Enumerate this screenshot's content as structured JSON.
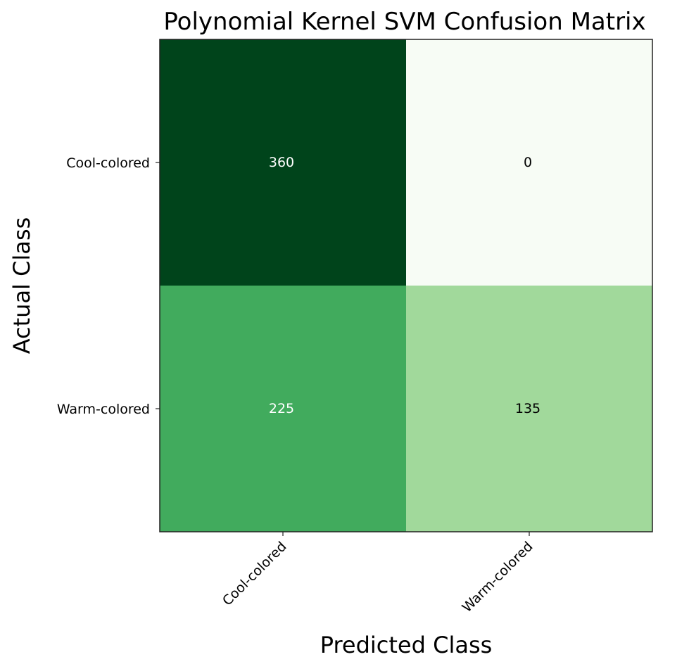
{
  "chart_data": {
    "type": "heatmap",
    "title": "Polynomial Kernel SVM Confusion Matrix",
    "xlabel": "Predicted Class",
    "ylabel": "Actual Class",
    "x_categories": [
      "Cool-colored",
      "Warm-colored"
    ],
    "y_categories": [
      "Cool-colored",
      "Warm-colored"
    ],
    "values": [
      [
        360,
        0
      ],
      [
        225,
        135
      ]
    ],
    "colormap": "Greens",
    "value_range": [
      0,
      360
    ],
    "grid": false
  }
}
